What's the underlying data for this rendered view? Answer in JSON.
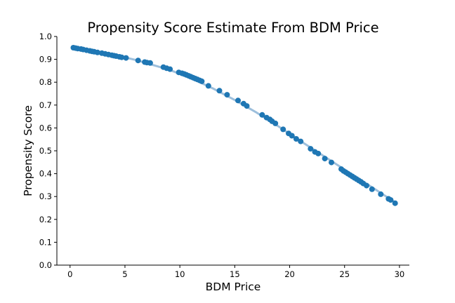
{
  "chart_data": {
    "type": "scatter",
    "title": "Propensity Score Estimate From BDM Price",
    "xlabel": "BDM Price",
    "ylabel": "Propensity Score",
    "xlim": [
      -1.2,
      30.9
    ],
    "ylim": [
      0.0,
      1.0
    ],
    "x_ticks": [
      0,
      5,
      10,
      15,
      20,
      25,
      30
    ],
    "x_tick_labels": [
      "0",
      "5",
      "10",
      "15",
      "20",
      "25",
      "30"
    ],
    "y_ticks": [
      0.0,
      0.1,
      0.2,
      0.3,
      0.4,
      0.5,
      0.6,
      0.7,
      0.8,
      0.9,
      1.0
    ],
    "y_tick_labels": [
      "0.0",
      "0.1",
      "0.2",
      "0.3",
      "0.4",
      "0.5",
      "0.6",
      "0.7",
      "0.8",
      "0.9",
      "1.0"
    ],
    "grid": false,
    "legend": "none",
    "series": [
      {
        "style": "fit-line",
        "color": "#9dbfdc",
        "x": [
          0.2,
          3,
          6,
          9,
          11,
          13,
          15,
          17,
          19,
          21,
          23,
          25,
          27,
          29.5
        ],
        "y": [
          0.952,
          0.931,
          0.897,
          0.855,
          0.818,
          0.773,
          0.722,
          0.667,
          0.606,
          0.542,
          0.48,
          0.418,
          0.356,
          0.278
        ]
      },
      {
        "style": "points",
        "color": "#1f77b4",
        "x": [
          0.3,
          0.5,
          0.7,
          1.0,
          1.2,
          1.5,
          1.8,
          2.0,
          2.2,
          2.5,
          2.9,
          3.2,
          3.5,
          3.8,
          4.0,
          4.2,
          4.5,
          4.7,
          5.1,
          6.2,
          6.8,
          7.0,
          7.3,
          8.5,
          8.8,
          9.1,
          9.9,
          10.2,
          10.4,
          10.6,
          10.8,
          11.0,
          11.2,
          11.4,
          11.6,
          11.8,
          12.0,
          12.6,
          13.6,
          14.3,
          15.3,
          15.8,
          16.1,
          17.5,
          17.9,
          18.2,
          18.4,
          18.7,
          19.4,
          19.9,
          20.2,
          20.6,
          21.0,
          21.9,
          22.3,
          22.6,
          23.2,
          23.8,
          24.7,
          24.9,
          25.1,
          25.3,
          25.5,
          25.7,
          25.9,
          26.1,
          26.3,
          26.5,
          26.7,
          27.0,
          27.5,
          28.3,
          29.0,
          29.2,
          29.6
        ],
        "y": [
          0.951,
          0.949,
          0.947,
          0.945,
          0.943,
          0.94,
          0.937,
          0.935,
          0.933,
          0.93,
          0.927,
          0.924,
          0.921,
          0.918,
          0.916,
          0.914,
          0.911,
          0.909,
          0.906,
          0.895,
          0.888,
          0.886,
          0.884,
          0.866,
          0.861,
          0.857,
          0.843,
          0.839,
          0.836,
          0.832,
          0.828,
          0.824,
          0.82,
          0.816,
          0.812,
          0.808,
          0.804,
          0.784,
          0.763,
          0.745,
          0.72,
          0.706,
          0.696,
          0.657,
          0.645,
          0.637,
          0.629,
          0.62,
          0.594,
          0.576,
          0.566,
          0.552,
          0.541,
          0.509,
          0.495,
          0.488,
          0.466,
          0.449,
          0.42,
          0.412,
          0.406,
          0.4,
          0.394,
          0.388,
          0.382,
          0.376,
          0.37,
          0.364,
          0.357,
          0.348,
          0.332,
          0.31,
          0.29,
          0.285,
          0.271
        ]
      }
    ]
  }
}
